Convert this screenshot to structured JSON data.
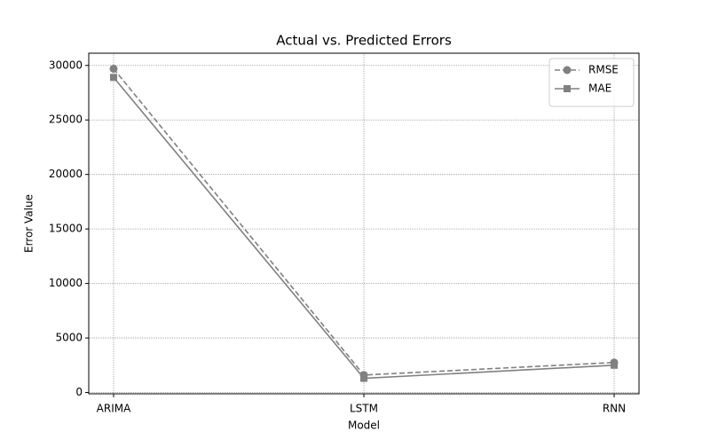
{
  "chart_data": {
    "type": "line",
    "title": "Actual vs. Predicted Errors",
    "x_label": "Model",
    "y_label": "Error Value",
    "categories": [
      "ARIMA",
      "LSTM",
      "RNN"
    ],
    "series": [
      {
        "name": "RMSE",
        "color": "#808080",
        "dash": true,
        "marker": "circle",
        "values": [
          29700,
          1600,
          2750
        ]
      },
      {
        "name": "MAE",
        "color": "#808080",
        "dash": false,
        "marker": "square",
        "values": [
          28900,
          1300,
          2500
        ]
      }
    ],
    "ylim": [
      -120,
      31120
    ],
    "yticks": [
      0,
      5000,
      10000,
      15000,
      20000,
      25000,
      30000
    ],
    "grid": true,
    "legend": "upper right"
  }
}
